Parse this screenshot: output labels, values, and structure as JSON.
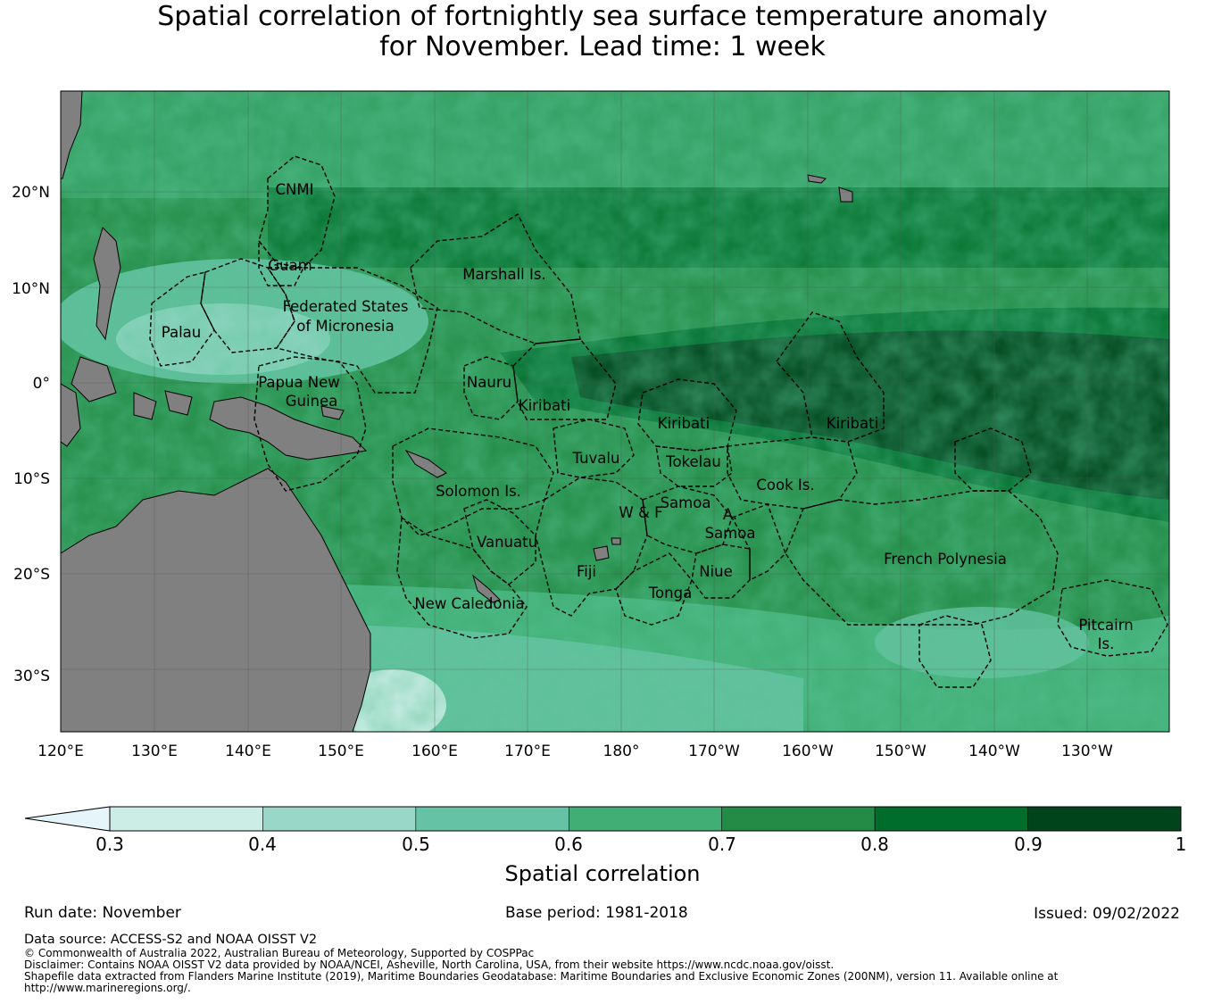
{
  "title_line1": "Spatial correlation of fortnightly sea surface temperature anomaly",
  "title_line2": "for November. Lead time: 1 week",
  "map": {
    "lon_ticks": [
      "120°E",
      "130°E",
      "140°E",
      "150°E",
      "160°E",
      "170°E",
      "180°",
      "170°W",
      "160°W",
      "150°W",
      "140°W",
      "130°W"
    ],
    "lat_ticks": [
      "20°N",
      "10°N",
      "0°",
      "10°S",
      "20°S",
      "30°S"
    ],
    "land_color": "#808080",
    "regions": [
      {
        "label": "CNMI"
      },
      {
        "label": "Guam"
      },
      {
        "label": "Marshall Is."
      },
      {
        "label": "Palau"
      },
      {
        "label": "Federated States"
      },
      {
        "label": "of Micronesia"
      },
      {
        "label": "Papua New"
      },
      {
        "label": "Guinea"
      },
      {
        "label": "Nauru"
      },
      {
        "label": "Kiribati"
      },
      {
        "label": "Kiribati"
      },
      {
        "label": "Kiribati"
      },
      {
        "label": "Tuvalu"
      },
      {
        "label": "Tokelau"
      },
      {
        "label": "Solomon Is."
      },
      {
        "label": "Cook Is."
      },
      {
        "label": "Samoa"
      },
      {
        "label": "W & F"
      },
      {
        "label": "A."
      },
      {
        "label": "Samoa"
      },
      {
        "label": "Vanuatu"
      },
      {
        "label": "Fiji"
      },
      {
        "label": "Niue"
      },
      {
        "label": "Tonga"
      },
      {
        "label": "French Polynesia"
      },
      {
        "label": "New Caledonia"
      },
      {
        "label": "Pitcairn"
      },
      {
        "label": "Is."
      }
    ]
  },
  "colorbar": {
    "title": "Spatial correlation",
    "ticks": [
      "0.3",
      "0.4",
      "0.5",
      "0.6",
      "0.7",
      "0.8",
      "0.9",
      "1"
    ],
    "colors": [
      "#e5f5f9",
      "#ccece6",
      "#99d8c9",
      "#66c2a4",
      "#41ae76",
      "#238b45",
      "#006d2c",
      "#00441b"
    ]
  },
  "meta": {
    "run_date": "Run date: November",
    "base_period": "Base period: 1981-2018",
    "issued": "Issued: 09/02/2022"
  },
  "footer": {
    "data_source": "Data source: ACCESS-S2 and NOAA OISST V2",
    "copyright": "© Commonwealth of Australia 2022, Australian Bureau of Meteorology, Supported by COSPPac",
    "disclaimer": "Disclaimer: Contains NOAA OISST V2 data provided by NOAA/NCEI, Asheville, North Carolina, USA, from their website https://www.ncdc.noaa.gov/oisst.",
    "shapefile_1": "Shapefile data extracted from Flanders Marine Institute (2019), Maritime Boundaries Geodatabase: Maritime Boundaries and Exclusive Economic Zones (200NM), version 11. Available online at",
    "shapefile_2": "http://www.marineregions.org/."
  }
}
